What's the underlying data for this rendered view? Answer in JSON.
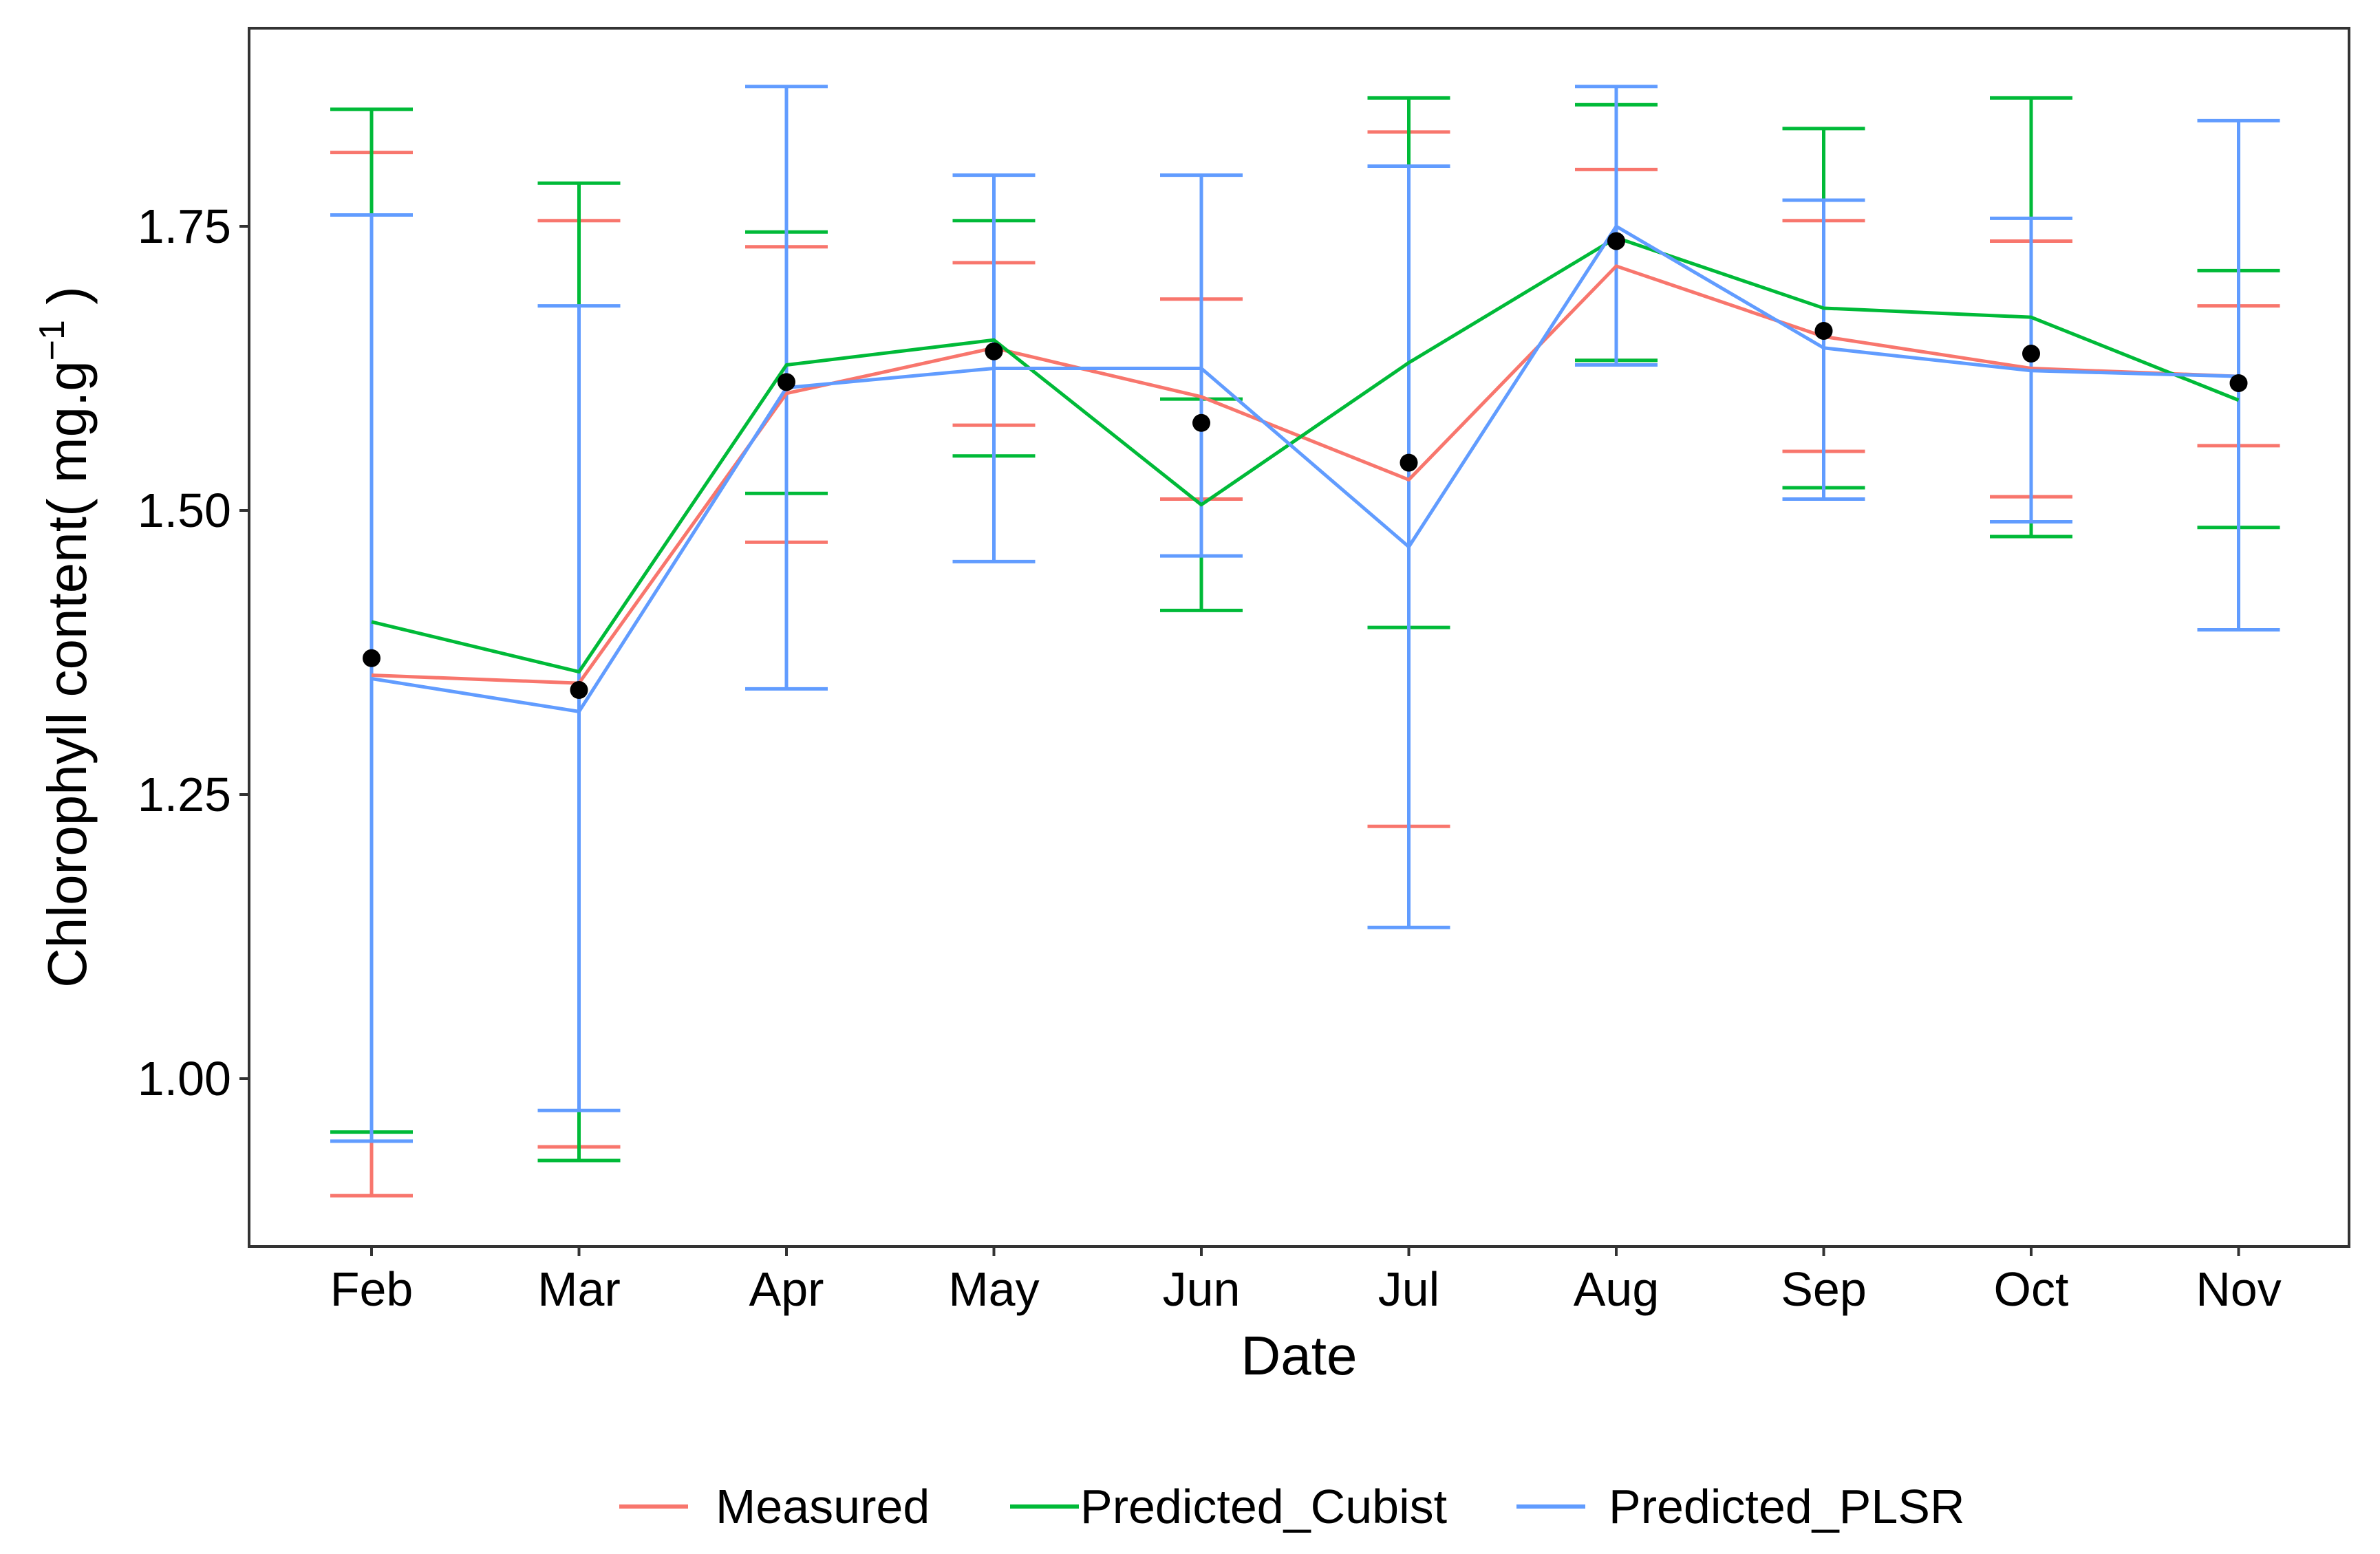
{
  "chart_data": {
    "type": "line",
    "title": "",
    "xlabel": "Date",
    "ylabel": "Chlorophyll content( mg.g",
    "ylabel_superscript": "−1",
    "ylabel_suffix": " )",
    "ylim": [
      0.85,
      1.92
    ],
    "yticks": [
      1.0,
      1.25,
      1.5,
      1.75
    ],
    "ytick_labels": [
      "1.00",
      "1.25",
      "1.50",
      "1.75"
    ],
    "categories": [
      "Feb",
      "Mar",
      "Apr",
      "May",
      "Jun",
      "Jul",
      "Aug",
      "Sep",
      "Oct",
      "Nov"
    ],
    "grid": false,
    "legend_position": "bottom",
    "series": [
      {
        "name": "Measured",
        "color": "#F8766D",
        "values": [
          1.355,
          1.348,
          1.603,
          1.643,
          1.6,
          1.527,
          1.715,
          1.653,
          1.625,
          1.618
        ],
        "err_low": [
          0.897,
          0.94,
          1.472,
          1.575,
          1.51,
          1.222,
          1.632,
          1.552,
          1.512,
          1.557
        ],
        "err_high": [
          1.815,
          1.755,
          1.732,
          1.718,
          1.686,
          1.833,
          1.8,
          1.755,
          1.737,
          1.68
        ]
      },
      {
        "name": "Predicted_Cubist",
        "color": "#00BA38",
        "values": [
          1.402,
          1.358,
          1.628,
          1.65,
          1.505,
          1.63,
          1.74,
          1.678,
          1.67,
          1.597
        ],
        "err_low": [
          0.953,
          0.928,
          1.515,
          1.548,
          1.412,
          1.397,
          1.632,
          1.52,
          1.477,
          1.485
        ],
        "err_high": [
          1.853,
          1.788,
          1.745,
          1.755,
          1.598,
          1.863,
          1.857,
          1.836,
          1.863,
          1.711
        ]
      },
      {
        "name": "Predicted_PLSR",
        "color": "#619CFF",
        "values": [
          1.352,
          1.323,
          1.608,
          1.625,
          1.625,
          1.468,
          1.75,
          1.643,
          1.623,
          1.618
        ],
        "err_low": [
          0.945,
          0.972,
          1.343,
          1.455,
          1.46,
          1.133,
          1.628,
          1.51,
          1.49,
          1.395
        ],
        "err_high": [
          1.76,
          1.68,
          1.873,
          1.795,
          1.795,
          1.803,
          1.873,
          1.773,
          1.757,
          1.843
        ]
      }
    ],
    "points": {
      "color": "#000000",
      "values": [
        1.37,
        1.342,
        1.613,
        1.64,
        1.577,
        1.542,
        1.737,
        1.658,
        1.638,
        1.612
      ]
    }
  }
}
